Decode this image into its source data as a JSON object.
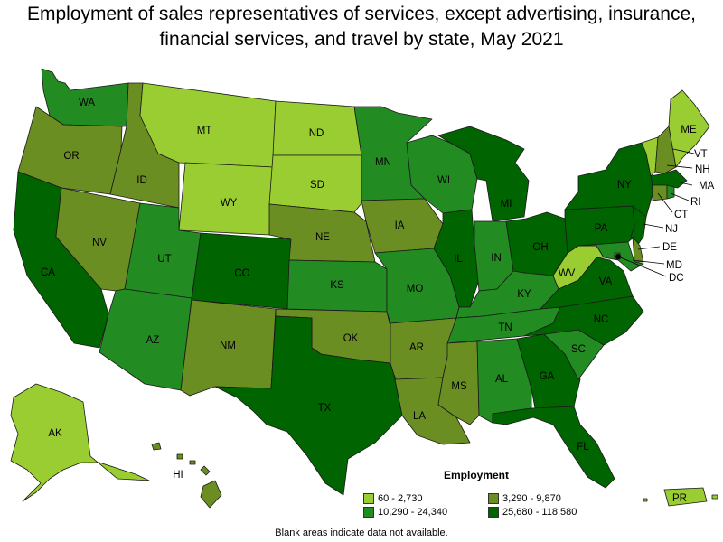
{
  "title": "Employment of sales representatives of services, except advertising, insurance, financial services, and travel by state, May 2021",
  "legend": {
    "title": "Employment",
    "bins": [
      {
        "label": "60 - 2,730",
        "color": "#9acd32"
      },
      {
        "label": "3,290 - 9,870",
        "color": "#6b8e23"
      },
      {
        "label": "10,290 - 24,340",
        "color": "#228b22"
      },
      {
        "label": "25,680 - 118,580",
        "color": "#006400"
      }
    ]
  },
  "note": "Blank areas indicate data not available.",
  "states": {
    "WA": 2,
    "OR": 1,
    "CA": 3,
    "NV": 1,
    "ID": 1,
    "MT": 0,
    "WY": 0,
    "UT": 2,
    "AZ": 2,
    "CO": 3,
    "NM": 1,
    "ND": 0,
    "SD": 0,
    "NE": 1,
    "KS": 2,
    "OK": 1,
    "TX": 3,
    "MN": 2,
    "IA": 1,
    "MO": 2,
    "AR": 1,
    "LA": 1,
    "WI": 2,
    "IL": 3,
    "MI": 3,
    "IN": 2,
    "OH": 3,
    "KY": 2,
    "TN": 2,
    "MS": 1,
    "AL": 2,
    "GA": 3,
    "FL": 3,
    "SC": 2,
    "NC": 3,
    "VA": 3,
    "WV": 0,
    "PA": 3,
    "NY": 3,
    "ME": 0,
    "VT": 0,
    "NH": 1,
    "MA": 3,
    "CT": 1,
    "RI": 2,
    "NJ": 3,
    "DE": 1,
    "MD": 2,
    "DC": 2,
    "AK": 0,
    "HI": 1,
    "PR": 0
  }
}
